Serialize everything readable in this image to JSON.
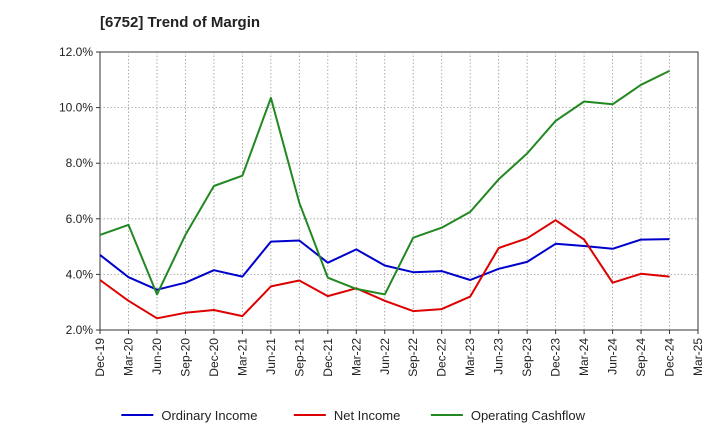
{
  "chart_data": {
    "type": "line",
    "title": "[6752]  Trend of Margin",
    "xlabel": "",
    "ylabel": "",
    "ylim": [
      2.0,
      12.0
    ],
    "yticks": [
      "2.0%",
      "4.0%",
      "6.0%",
      "8.0%",
      "10.0%",
      "12.0%"
    ],
    "ytick_values": [
      2,
      4,
      6,
      8,
      10,
      12
    ],
    "categories": [
      "Dec-19",
      "Mar-20",
      "Jun-20",
      "Sep-20",
      "Dec-20",
      "Mar-21",
      "Jun-21",
      "Sep-21",
      "Dec-21",
      "Mar-22",
      "Jun-22",
      "Sep-22",
      "Dec-22",
      "Mar-23",
      "Jun-23",
      "Sep-23",
      "Dec-23",
      "Mar-24",
      "Jun-24",
      "Sep-24",
      "Dec-24",
      "Mar-25"
    ],
    "grid": true,
    "legend": "bottom",
    "series": [
      {
        "name": "Ordinary Income",
        "color": "#0000cc",
        "values": [
          4.7,
          3.9,
          3.45,
          3.7,
          4.15,
          3.92,
          5.18,
          5.22,
          4.42,
          4.9,
          4.32,
          4.08,
          4.12,
          3.8,
          4.2,
          4.45,
          5.1,
          5.02,
          4.92,
          5.25,
          5.27,
          null
        ]
      },
      {
        "name": "Net Income",
        "color": "#dd0000",
        "values": [
          3.8,
          3.05,
          2.42,
          2.62,
          2.72,
          2.5,
          3.57,
          3.78,
          3.22,
          3.5,
          3.05,
          2.68,
          2.75,
          3.2,
          4.95,
          5.3,
          5.95,
          5.25,
          3.7,
          4.02,
          3.92,
          null
        ]
      },
      {
        "name": "Operating Cashflow",
        "color": "#228822",
        "values": [
          5.42,
          5.78,
          3.28,
          5.42,
          7.18,
          7.55,
          10.35,
          6.58,
          3.88,
          3.48,
          3.28,
          5.32,
          5.68,
          6.25,
          7.42,
          8.35,
          9.52,
          10.22,
          10.12,
          10.82,
          11.32,
          null
        ]
      }
    ]
  }
}
